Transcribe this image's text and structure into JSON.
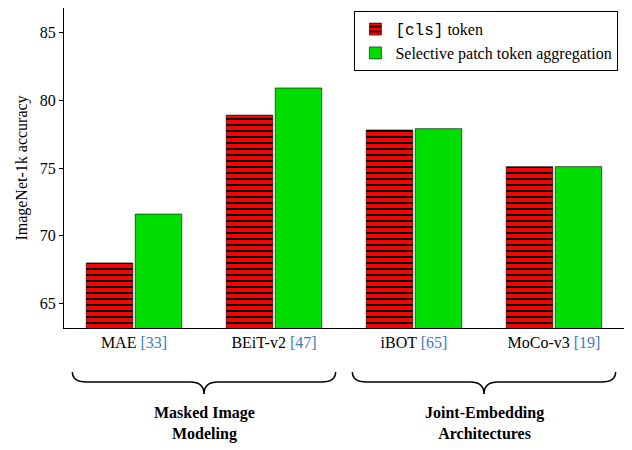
{
  "chart_data": {
    "type": "bar",
    "categories": [
      "MAE [33]",
      "BEiT-v2 [47]",
      "iBOT [65]",
      "MoCo-v3 [19]"
    ],
    "series": [
      {
        "name": "[cls] token",
        "color": "#ff0000",
        "marker": "hatched",
        "values": [
          68.0,
          78.9,
          77.8,
          75.1
        ]
      },
      {
        "name": "Selective patch token aggregation",
        "color": "#00dd00",
        "values": [
          71.6,
          80.9,
          77.9,
          75.1
        ]
      }
    ],
    "y_label": "ImageNet-1k accuracy",
    "ylim": [
      63.2,
      86.8
    ],
    "yticks": [
      65,
      70,
      75,
      80,
      85
    ],
    "grid": false,
    "legend": "top right",
    "groups": [
      {
        "label": [
          "Masked Image",
          "Modeling"
        ],
        "categories": [
          "MAE [33]",
          "BEiT-v2 [47]"
        ]
      },
      {
        "label": [
          "Joint-Embedding",
          "Architectures"
        ],
        "categories": [
          "iBOT [65]",
          "MoCo-v3 [19]"
        ]
      }
    ]
  }
}
